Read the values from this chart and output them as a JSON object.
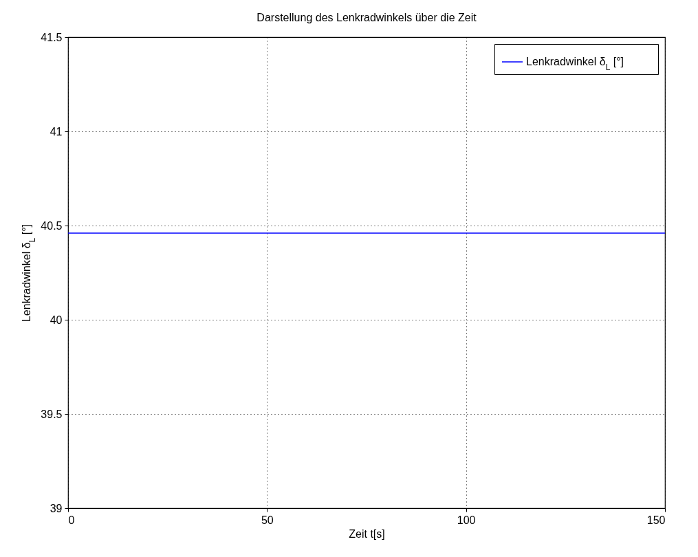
{
  "chart_data": {
    "type": "line",
    "title": "Darstellung des Lenkradwinkels über die Zeit",
    "xlabel": "Zeit t[s]",
    "ylabel": "Lenkradwinkel δ$_{L}$ [°]",
    "x": [
      0,
      150
    ],
    "series": [
      {
        "name": "Lenkradwinkel δ$_{L}$ [°]",
        "color": "#0000ff",
        "values": [
          40.46,
          40.46
        ]
      }
    ],
    "xlim": [
      0,
      150
    ],
    "xticks": [
      0,
      50,
      100,
      150
    ],
    "ylim": [
      39,
      41.5
    ],
    "yticks": [
      39,
      39.5,
      40,
      40.5,
      41,
      41.5
    ],
    "grid": true,
    "legend": "top right",
    "line_style": "solid",
    "marker": "none"
  }
}
